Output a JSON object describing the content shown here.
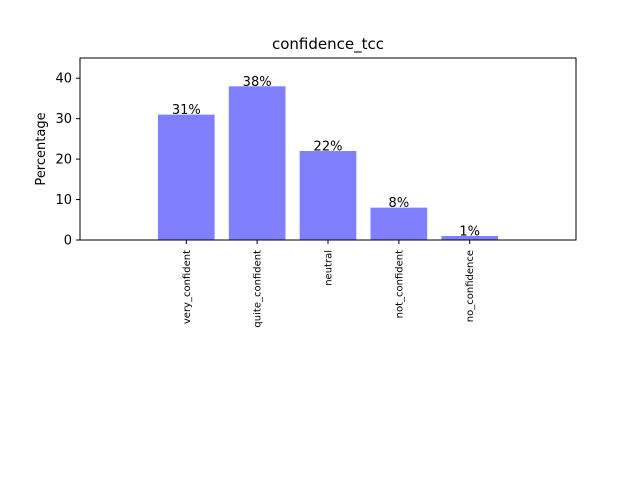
{
  "chart_data": {
    "type": "bar",
    "title": "confidence_tcc",
    "xlabel": "",
    "ylabel": "Percentage",
    "categories": [
      "very_confident",
      "quite_confident",
      "neutral",
      "not_confident",
      "no_confidence"
    ],
    "values": [
      31,
      38,
      22,
      8,
      1
    ],
    "data_labels": [
      "31%",
      "38%",
      "22%",
      "8%",
      "1%"
    ],
    "ylim": [
      0,
      45
    ],
    "yticks": [
      0,
      10,
      20,
      30,
      40
    ],
    "grid": false,
    "legend": "none",
    "bar_color": "#8080ff"
  }
}
